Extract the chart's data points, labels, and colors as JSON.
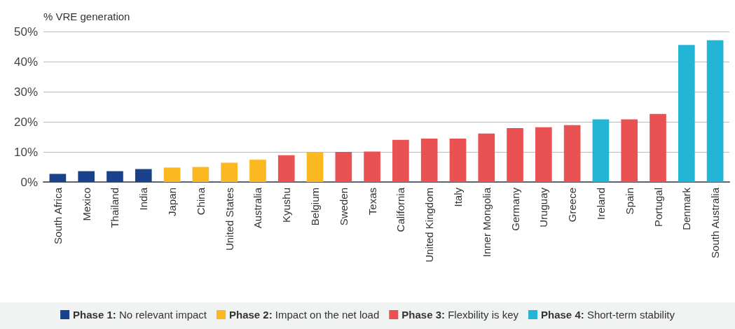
{
  "chart_data": {
    "type": "bar",
    "ylabel": "% VRE generation",
    "categories": [
      "South Africa",
      "Mexico",
      "Thailand",
      "India",
      "Japan",
      "China",
      "United States",
      "Australia",
      "Kyushu",
      "Belgium",
      "Sweden",
      "Texas",
      "California",
      "United Kingdom",
      "Italy",
      "Inner Mongolia",
      "Germany",
      "Uruguay",
      "Greece",
      "Ireland",
      "Spain",
      "Portugal",
      "Denmark",
      "South Australia"
    ],
    "series": [
      {
        "name": "Phase 1: No relevant impact",
        "color": "#1a428a",
        "values": [
          2.7,
          3.6,
          3.6,
          4.3,
          null,
          null,
          null,
          null,
          null,
          null,
          null,
          null,
          null,
          null,
          null,
          null,
          null,
          null,
          null,
          null,
          null,
          null,
          null,
          null
        ]
      },
      {
        "name": "Phase 2: Impact on the net load",
        "color": "#fbb820",
        "values": [
          null,
          null,
          null,
          null,
          4.8,
          5.0,
          6.4,
          7.4,
          null,
          10.0,
          null,
          null,
          null,
          null,
          null,
          null,
          null,
          null,
          null,
          null,
          null,
          null,
          null,
          null
        ]
      },
      {
        "name": "Phase 3: Flexbility is key",
        "color": "#e95153",
        "values": [
          null,
          null,
          null,
          null,
          null,
          null,
          null,
          null,
          8.9,
          null,
          10.0,
          10.1,
          14.0,
          14.4,
          14.4,
          16.1,
          17.9,
          18.2,
          18.9,
          null,
          20.8,
          22.6,
          null,
          null
        ]
      },
      {
        "name": "Phase 4: Short-term stability",
        "color": "#22b5d5",
        "values": [
          null,
          null,
          null,
          null,
          null,
          null,
          null,
          null,
          null,
          null,
          null,
          null,
          null,
          null,
          null,
          null,
          null,
          null,
          null,
          20.8,
          null,
          null,
          45.5,
          47.1
        ]
      }
    ],
    "ylim": [
      0,
      50
    ],
    "yticks": [
      {
        "value": 0,
        "label": "0%"
      },
      {
        "value": 10,
        "label": "10%"
      },
      {
        "value": 20,
        "label": "20%"
      },
      {
        "value": 30,
        "label": "30%"
      },
      {
        "value": 40,
        "label": "40%"
      },
      {
        "value": 50,
        "label": "50%"
      }
    ],
    "grid": "y",
    "legend": "bottom"
  }
}
